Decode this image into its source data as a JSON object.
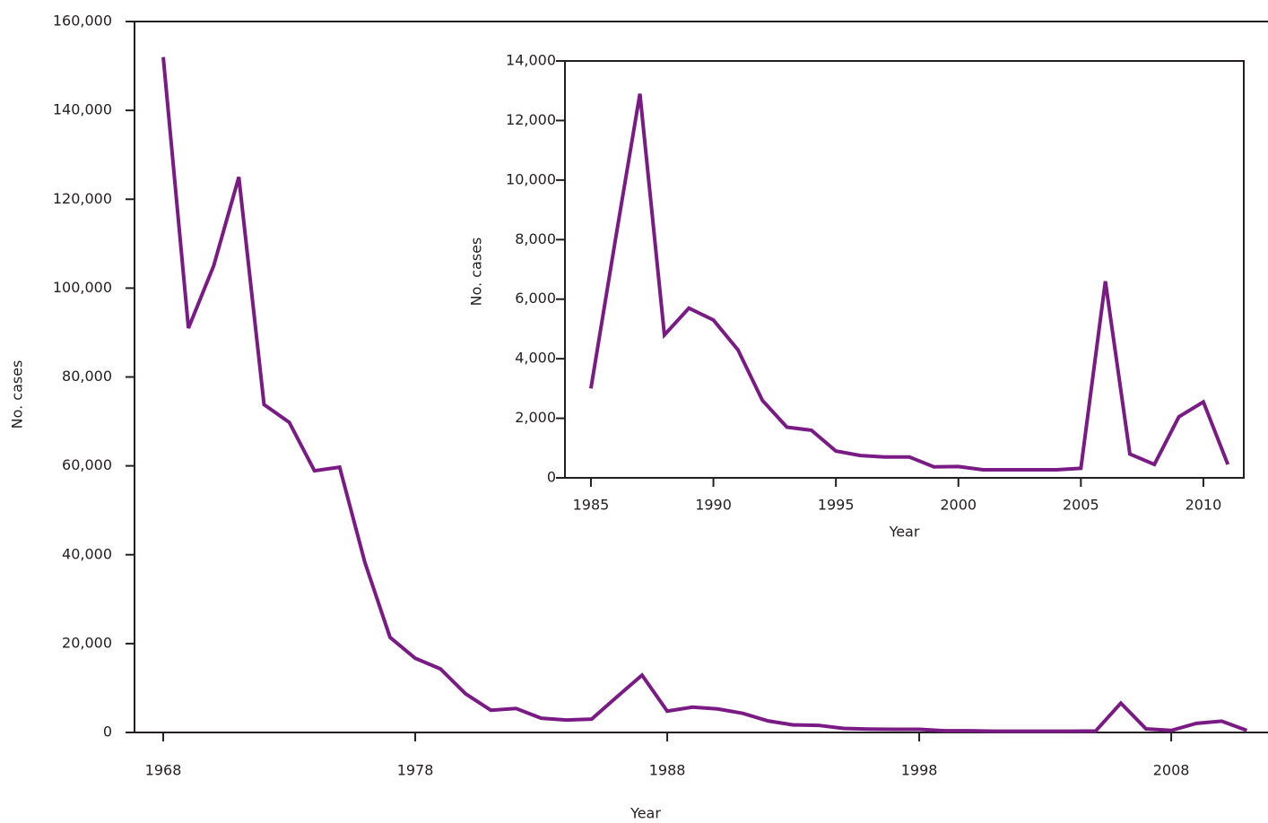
{
  "chart_data": [
    {
      "type": "line",
      "xlabel": "Year",
      "ylabel": "No. cases",
      "color": "#7a1a85",
      "x": [
        1968,
        1969,
        1970,
        1971,
        1972,
        1973,
        1974,
        1975,
        1976,
        1977,
        1978,
        1979,
        1980,
        1981,
        1982,
        1983,
        1984,
        1985,
        1986,
        1987,
        1988,
        1989,
        1990,
        1991,
        1992,
        1993,
        1994,
        1995,
        1996,
        1997,
        1998,
        1999,
        2000,
        2001,
        2002,
        2003,
        2004,
        2005,
        2006,
        2007,
        2008,
        2009,
        2010,
        2011
      ],
      "values": [
        152000,
        91000,
        105000,
        125000,
        73800,
        69800,
        58900,
        59700,
        38300,
        21400,
        16700,
        14300,
        8700,
        5000,
        5400,
        3200,
        2800,
        3000,
        8000,
        12900,
        4800,
        5700,
        5300,
        4300,
        2600,
        1700,
        1600,
        900,
        750,
        700,
        700,
        370,
        380,
        270,
        270,
        270,
        270,
        320,
        6600,
        800,
        450,
        2050,
        2550,
        450
      ],
      "xlim": [
        1966.86,
        2011.84
      ],
      "xticks": [
        1968,
        1978,
        1988,
        1998,
        2008
      ],
      "ylim": [
        0,
        160000
      ],
      "yticks": [
        0,
        {
          "value": 20000,
          "label": "20,000"
        },
        {
          "value": 40000,
          "label": "40,000"
        },
        {
          "value": 60000,
          "label": "60,000"
        },
        {
          "value": 80000,
          "label": "80,000"
        },
        {
          "value": 100000,
          "label": "100,000"
        },
        {
          "value": 120000,
          "label": "120,000"
        },
        {
          "value": 140000,
          "label": "140,000"
        },
        {
          "value": 160000,
          "label": "160,000"
        }
      ]
    },
    {
      "type": "line",
      "xlabel": "Year",
      "ylabel": "No. cases",
      "color": "#7a1a85",
      "x": [
        1985,
        1986,
        1987,
        1988,
        1989,
        1990,
        1991,
        1992,
        1993,
        1994,
        1995,
        1996,
        1997,
        1998,
        1999,
        2000,
        2001,
        2002,
        2003,
        2004,
        2005,
        2006,
        2007,
        2008,
        2009,
        2010,
        2011
      ],
      "values": [
        3000,
        8000,
        12900,
        4800,
        5700,
        5300,
        4300,
        2600,
        1700,
        1600,
        900,
        750,
        700,
        700,
        370,
        380,
        270,
        270,
        270,
        270,
        320,
        6600,
        800,
        450,
        2050,
        2550,
        450
      ],
      "xlim": [
        1983.94,
        2011.65
      ],
      "xticks": [
        1985,
        1990,
        1995,
        2000,
        2005,
        2010
      ],
      "ylim": [
        0,
        14000
      ],
      "yticks": [
        0,
        {
          "value": 2000,
          "label": "2,000"
        },
        {
          "value": 4000,
          "label": "4,000"
        },
        {
          "value": 6000,
          "label": "6,000"
        },
        {
          "value": 8000,
          "label": "8,000"
        },
        {
          "value": 10000,
          "label": "10,000"
        },
        {
          "value": 12000,
          "label": "12,000"
        },
        {
          "value": 14000,
          "label": "14,000"
        }
      ]
    }
  ]
}
